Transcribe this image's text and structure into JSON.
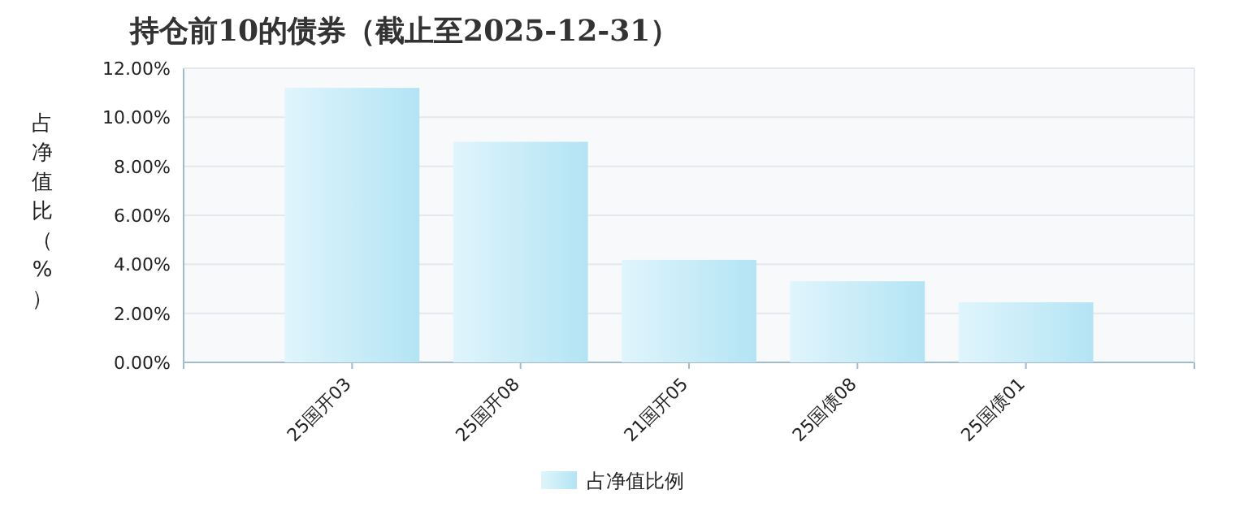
{
  "chart_data": {
    "type": "bar",
    "title": "持仓前10的债券（截止至2025-12-31）",
    "ylabel": "占净值比（%）",
    "categories": [
      "25国开03",
      "25国开08",
      "21国开05",
      "25国债08",
      "25国债01"
    ],
    "series": [
      {
        "name": "占净值比例",
        "color": "#b3e4f4",
        "values": [
          11.2,
          9.0,
          4.18,
          3.31,
          2.45
        ]
      }
    ],
    "ylim": [
      0,
      12
    ],
    "yticks": [
      {
        "value": 0,
        "label": "0.00%"
      },
      {
        "value": 2,
        "label": "2.00%"
      },
      {
        "value": 4,
        "label": "4.00%"
      },
      {
        "value": 6,
        "label": "6.00%"
      },
      {
        "value": 8,
        "label": "8.00%"
      },
      {
        "value": 10,
        "label": "10.00%"
      },
      {
        "value": 12,
        "label": "12.00%"
      }
    ],
    "grid": "y",
    "legend": "bottom"
  }
}
